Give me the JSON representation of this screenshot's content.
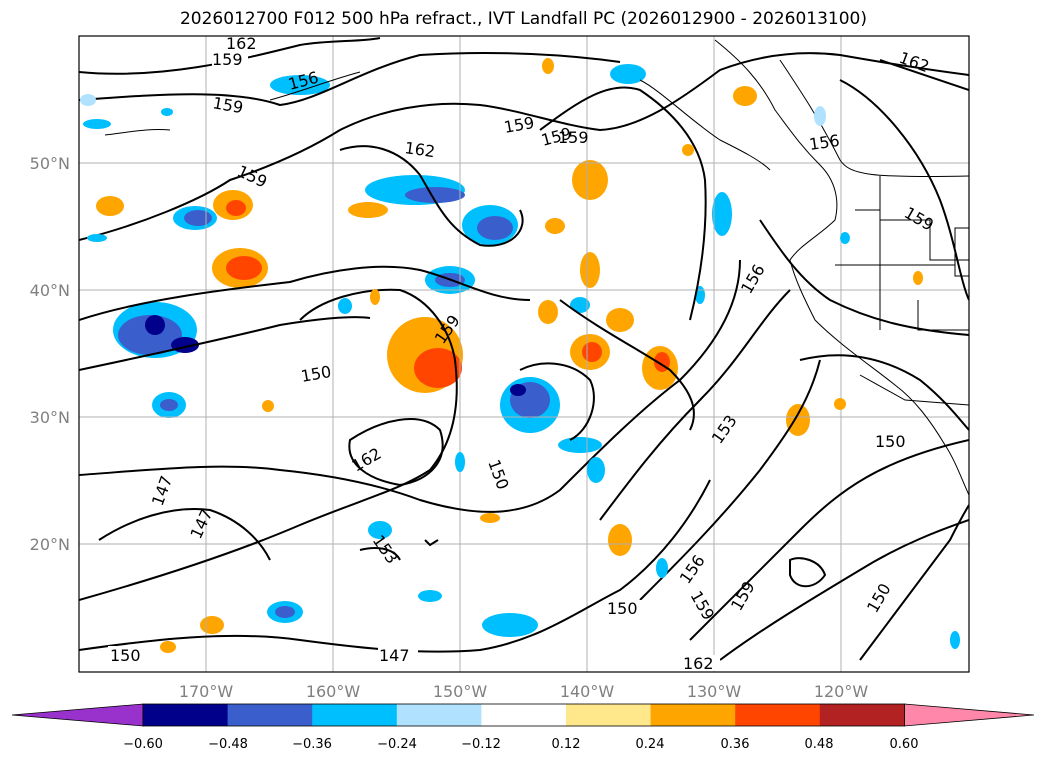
{
  "title": "2026012700 F012 500 hPa refract., IVT Landfall PC (2026012900 - 2026013100)",
  "map": {
    "lat_ticks": [
      "50°N",
      "40°N",
      "30°N",
      "20°N"
    ],
    "lon_ticks": [
      "170°W",
      "160°W",
      "150°W",
      "140°W",
      "130°W",
      "120°W"
    ],
    "contour_labels": [
      "162",
      "159",
      "156",
      "159",
      "159",
      "159",
      "162",
      "159",
      "156",
      "162",
      "159",
      "159",
      "156",
      "150",
      "159",
      "162",
      "150",
      "153",
      "150",
      "147",
      "147",
      "153",
      "156",
      "159",
      "159",
      "150",
      "150",
      "147",
      "162"
    ]
  },
  "colorbar": {
    "tick_labels": [
      "−0.60",
      "−0.48",
      "−0.36",
      "−0.24",
      "−0.12",
      "0.12",
      "0.24",
      "0.36",
      "0.48",
      "0.60"
    ],
    "colors": [
      "#9932cc",
      "#00008b",
      "#3a5fcd",
      "#00bfff",
      "#b0e2ff",
      "#ffffff",
      "#ffe78c",
      "#ffa500",
      "#ff4500",
      "#b22222",
      "#ff88aa"
    ]
  }
}
